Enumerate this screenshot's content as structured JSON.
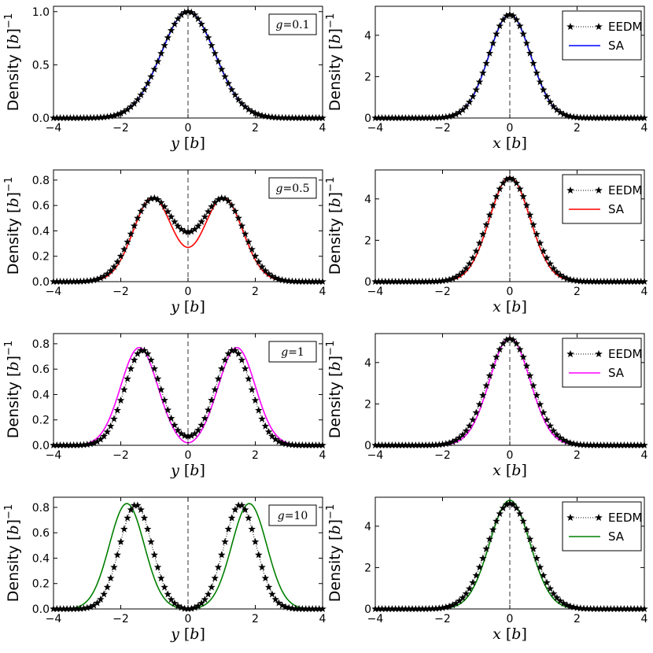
{
  "figure": {
    "panels": 8,
    "layout": "4 rows x 2 columns"
  },
  "chart_data": [
    {
      "type": "line",
      "panel": "y-g0.1",
      "title": "",
      "annotation": "g=0.1",
      "xlabel": "y [b]",
      "ylabel": "Density [b]^-1",
      "xlim": [
        -4,
        4
      ],
      "ylim": [
        0,
        1.05
      ],
      "xticks": [
        "−4",
        "−2",
        "0",
        "2",
        "4"
      ],
      "yticks": [
        "0.0",
        "0.5",
        "1.0"
      ],
      "color": "#0000ff",
      "series": [
        {
          "name": "EEDM",
          "style": "black stars, dotted",
          "model": {
            "kind": "gauss",
            "amp": 1.0,
            "sigma": 0.8
          }
        },
        {
          "name": "SA",
          "style": "solid",
          "model": {
            "kind": "gauss",
            "amp": 1.0,
            "sigma": 0.8
          }
        }
      ],
      "legend": "none"
    },
    {
      "type": "line",
      "panel": "x-g0.1",
      "title": "",
      "annotation": "",
      "xlabel": "x [b]",
      "ylabel": "Density [b]^-1",
      "xlim": [
        -4,
        4
      ],
      "ylim": [
        0,
        5.4
      ],
      "xticks": [
        "−4",
        "−2",
        "0",
        "2",
        "4"
      ],
      "yticks": [
        "0",
        "2",
        "4"
      ],
      "color": "#0000ff",
      "series": [
        {
          "name": "EEDM",
          "style": "black stars, dotted",
          "model": {
            "kind": "gauss",
            "amp": 5.0,
            "sigma": 0.62
          }
        },
        {
          "name": "SA",
          "style": "solid",
          "model": {
            "kind": "gauss",
            "amp": 5.0,
            "sigma": 0.62
          }
        }
      ],
      "legend": "top-right"
    },
    {
      "type": "line",
      "panel": "y-g0.5",
      "title": "",
      "annotation": "g=0.5",
      "xlabel": "y [b]",
      "ylabel": "Density [b]^-1",
      "xlim": [
        -4,
        4
      ],
      "ylim": [
        0,
        0.88
      ],
      "xticks": [
        "−4",
        "−2",
        "0",
        "2",
        "4"
      ],
      "yticks": [
        "0.0",
        "0.2",
        "0.4",
        "0.6",
        "0.8"
      ],
      "color": "#ff0000",
      "series": [
        {
          "name": "EEDM",
          "style": "black stars, dotted",
          "model": {
            "kind": "double",
            "base": 0.39,
            "pk": 0.65,
            "x0": 1.05,
            "sigma": 0.62,
            "w": 0.45
          }
        },
        {
          "name": "SA",
          "style": "solid",
          "model": {
            "kind": "double",
            "base": 0.27,
            "pk": 0.66,
            "x0": 1.05,
            "sigma": 0.58,
            "w": 0.37
          }
        }
      ],
      "legend": "none"
    },
    {
      "type": "line",
      "panel": "x-g0.5",
      "title": "",
      "annotation": "",
      "xlabel": "x [b]",
      "ylabel": "Density [b]^-1",
      "xlim": [
        -4,
        4
      ],
      "ylim": [
        0,
        5.4
      ],
      "xticks": [
        "−4",
        "−2",
        "0",
        "2",
        "4"
      ],
      "yticks": [
        "0",
        "2",
        "4"
      ],
      "color": "#ff0000",
      "series": [
        {
          "name": "EEDM",
          "style": "black stars, dotted",
          "model": {
            "kind": "gauss",
            "amp": 5.0,
            "sigma": 0.64
          }
        },
        {
          "name": "SA",
          "style": "solid",
          "model": {
            "kind": "gauss",
            "amp": 5.05,
            "sigma": 0.6
          }
        }
      ],
      "legend": "top-right"
    },
    {
      "type": "line",
      "panel": "y-g1",
      "title": "",
      "annotation": "g=1",
      "xlabel": "y [b]",
      "ylabel": "Density [b]^-1",
      "xlim": [
        -4,
        4
      ],
      "ylim": [
        0,
        0.88
      ],
      "xticks": [
        "−4",
        "−2",
        "0",
        "2",
        "4"
      ],
      "yticks": [
        "0.0",
        "0.2",
        "0.4",
        "0.6",
        "0.8"
      ],
      "color": "#ff00ff",
      "series": [
        {
          "name": "EEDM",
          "style": "black stars, dotted",
          "model": {
            "kind": "double",
            "base": 0.07,
            "pk": 0.75,
            "x0": 1.35,
            "sigma": 0.53,
            "w": 0.3
          }
        },
        {
          "name": "SA",
          "style": "solid",
          "model": {
            "kind": "double",
            "base": 0.02,
            "pk": 0.77,
            "x0": 1.45,
            "sigma": 0.55,
            "w": 0.28
          }
        }
      ],
      "legend": "none"
    },
    {
      "type": "line",
      "panel": "x-g1",
      "title": "",
      "annotation": "",
      "xlabel": "x [b]",
      "ylabel": "Density [b]^-1",
      "xlim": [
        -4,
        4
      ],
      "ylim": [
        0,
        5.4
      ],
      "xticks": [
        "−4",
        "−2",
        "0",
        "2",
        "4"
      ],
      "yticks": [
        "0",
        "2",
        "4"
      ],
      "color": "#ff00ff",
      "series": [
        {
          "name": "EEDM",
          "style": "black stars, dotted",
          "model": {
            "kind": "gauss",
            "amp": 5.15,
            "sigma": 0.65
          }
        },
        {
          "name": "SA",
          "style": "solid",
          "model": {
            "kind": "gauss",
            "amp": 5.2,
            "sigma": 0.6
          }
        }
      ],
      "legend": "top-right"
    },
    {
      "type": "line",
      "panel": "y-g10",
      "title": "",
      "annotation": "g=10",
      "xlabel": "y [b]",
      "ylabel": "Density [b]^-1",
      "xlim": [
        -4,
        4
      ],
      "ylim": [
        0,
        0.88
      ],
      "xticks": [
        "−4",
        "−2",
        "0",
        "2",
        "4"
      ],
      "yticks": [
        "0.0",
        "0.2",
        "0.4",
        "0.6",
        "0.8"
      ],
      "color": "#008000",
      "series": [
        {
          "name": "EEDM",
          "style": "black stars, dotted",
          "model": {
            "kind": "double",
            "base": 0.0,
            "pk": 0.82,
            "x0": 1.55,
            "sigma": 0.48,
            "w": 0.25
          }
        },
        {
          "name": "SA",
          "style": "solid",
          "model": {
            "kind": "double",
            "base": 0.0,
            "pk": 0.83,
            "x0": 1.82,
            "sigma": 0.52,
            "w": 0.25
          }
        }
      ],
      "legend": "none"
    },
    {
      "type": "line",
      "panel": "x-g10",
      "title": "",
      "annotation": "",
      "xlabel": "x [b]",
      "ylabel": "Density [b]^-1",
      "xlim": [
        -4,
        4
      ],
      "ylim": [
        0,
        5.4
      ],
      "xticks": [
        "−4",
        "−2",
        "0",
        "2",
        "4"
      ],
      "yticks": [
        "0",
        "2",
        "4"
      ],
      "color": "#008000",
      "series": [
        {
          "name": "EEDM",
          "style": "black stars, dotted",
          "model": {
            "kind": "gauss",
            "amp": 5.1,
            "sigma": 0.66
          }
        },
        {
          "name": "SA",
          "style": "solid",
          "model": {
            "kind": "gauss",
            "amp": 5.25,
            "sigma": 0.6
          }
        }
      ],
      "legend": "top-right"
    }
  ]
}
